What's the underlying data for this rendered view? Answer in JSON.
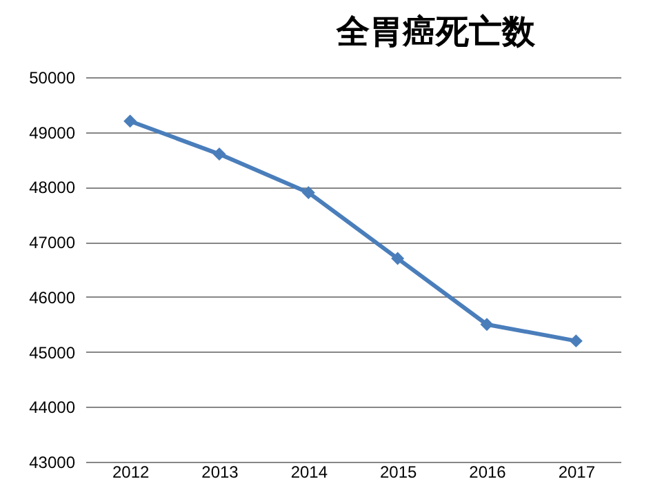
{
  "chart_data": {
    "type": "line",
    "title": "全胃癌死亡数",
    "categories": [
      "2012",
      "2013",
      "2014",
      "2015",
      "2016",
      "2017"
    ],
    "series": [
      {
        "color": "#4a7ebb",
        "values": [
          49200,
          48600,
          47900,
          46700,
          45500,
          45200
        ]
      }
    ],
    "ylim": [
      43000,
      50000
    ],
    "yticks": [
      43000,
      44000,
      45000,
      46000,
      47000,
      48000,
      49000,
      50000
    ],
    "grid": "y",
    "legend": false,
    "marker": "diamond",
    "line_style": "solid"
  }
}
